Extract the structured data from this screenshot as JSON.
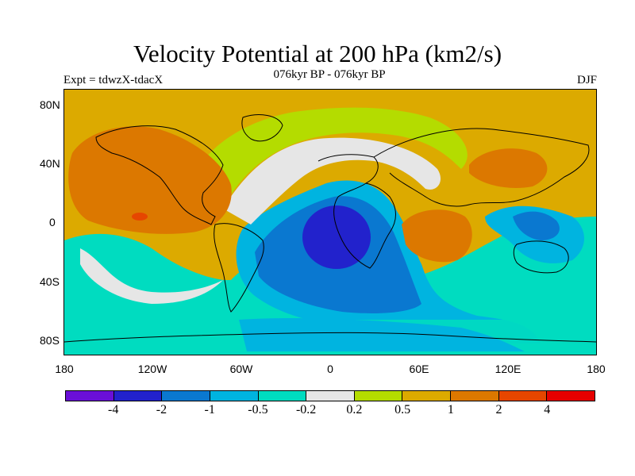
{
  "title": "Velocity Potential at 200 hPa (km2/s)",
  "subtitle": "076kyr BP - 076kyr BP",
  "left_label": "Expt = tdwzX-tdacX",
  "right_label": "DJF",
  "lat_labels": [
    "80N",
    "40N",
    "0",
    "40S",
    "80S"
  ],
  "lon_labels": [
    "180",
    "120W",
    "60W",
    "0",
    "60E",
    "120E",
    "180"
  ],
  "colorbar": {
    "colors": [
      "#6a0fd8",
      "#2222cc",
      "#0a78d0",
      "#00b4e0",
      "#00dcc0",
      "#e6e6e6",
      "#b4dc00",
      "#dcaa00",
      "#dc7800",
      "#e64600",
      "#e60000"
    ],
    "labels": [
      "-4",
      "-2",
      "-1",
      "-0.5",
      "-0.2",
      "0.2",
      "0.5",
      "1",
      "2",
      "4"
    ]
  }
}
